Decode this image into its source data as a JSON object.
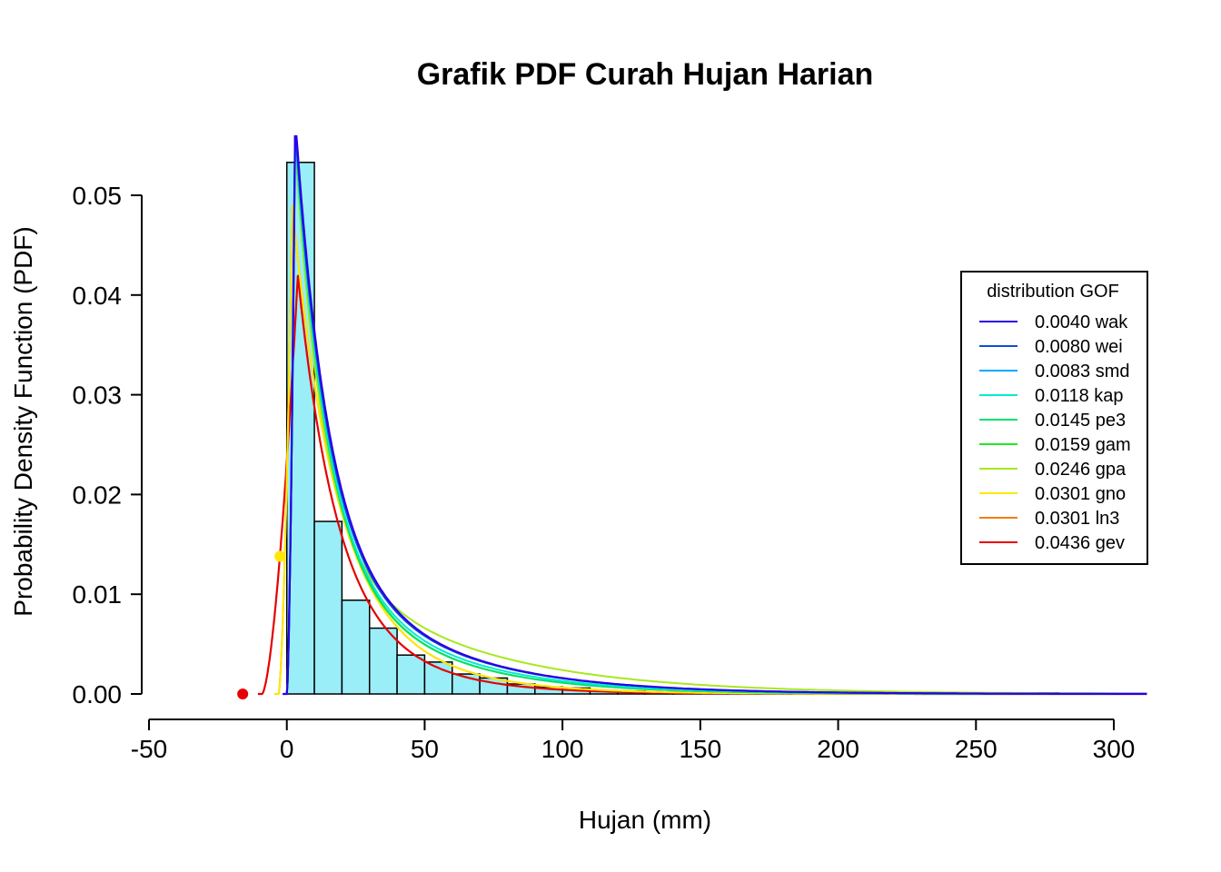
{
  "chart_data": {
    "type": "histogram",
    "title": "Grafik PDF Curah Hujan Harian",
    "xlabel": "Hujan (mm)",
    "ylabel": "Probability Density Function (PDF)",
    "xlim": [
      -50,
      312
    ],
    "ylim": [
      0,
      0.055
    ],
    "x_ticks": [
      -50,
      0,
      50,
      100,
      150,
      200,
      250,
      300
    ],
    "x_tick_labels": [
      "-50",
      "0",
      "50",
      "100",
      "150",
      "200",
      "250",
      "300"
    ],
    "y_ticks": [
      0,
      0.01,
      0.02,
      0.03,
      0.04,
      0.05
    ],
    "y_tick_labels": [
      "0.00",
      "0.01",
      "0.02",
      "0.03",
      "0.04",
      "0.05"
    ],
    "grid": false,
    "histogram": {
      "bin_edges": [
        0,
        10,
        20,
        30,
        40,
        50,
        60,
        70,
        80,
        90,
        100,
        110,
        120,
        130,
        140,
        150,
        160,
        170,
        180,
        190,
        200,
        210,
        220,
        230,
        240,
        250,
        260,
        270,
        280
      ],
      "densities": [
        0.0533,
        0.0173,
        0.0094,
        0.0066,
        0.0039,
        0.0032,
        0.002,
        0.0016,
        0.001,
        0.0007,
        0.0006,
        0.0003,
        0.0003,
        0.0002,
        0.0002,
        0.0001,
        0.0001,
        0.0001,
        0.0001,
        0.0001,
        0.0001,
        0.0001,
        0.0001,
        0.0001,
        0.0001,
        0.0001,
        0.0001,
        0.0001
      ],
      "fill": "#99EEF8",
      "stroke": "#000000"
    },
    "legend": {
      "title": "distribution GOF",
      "position": "right"
    },
    "series": [
      {
        "name": "0.0040 wak",
        "color": "#2A00E6",
        "dist": "wak",
        "peak_x": 3,
        "peak_y": 0.058,
        "decay": 0.087,
        "k": 0.15,
        "start": 0
      },
      {
        "name": "0.0080 wei",
        "color": "#0A4FD6",
        "dist": "wei",
        "peak_x": 3,
        "peak_y": 0.057,
        "decay": 0.088,
        "k": 0.15,
        "start": 0
      },
      {
        "name": "0.0083 smd",
        "color": "#00A8FF",
        "dist": "smd",
        "peak_x": 3,
        "peak_y": 0.057,
        "decay": 0.088,
        "k": 0.15,
        "start": 0
      },
      {
        "name": "0.0118 kap",
        "color": "#00EBD0",
        "dist": "kap",
        "peak_x": 3,
        "peak_y": 0.056,
        "decay": 0.089,
        "k": 0.16,
        "start": 0
      },
      {
        "name": "0.0145 pe3",
        "color": "#00E06A",
        "dist": "pe3",
        "peak_x": 3,
        "peak_y": 0.056,
        "decay": 0.089,
        "k": 0.17,
        "start": 0
      },
      {
        "name": "0.0159 gam",
        "color": "#1EEB1E",
        "dist": "gam",
        "peak_x": 3,
        "peak_y": 0.056,
        "decay": 0.09,
        "k": 0.17,
        "start": 0
      },
      {
        "name": "0.0246 gpa",
        "color": "#A8E81E",
        "dist": "gpa",
        "peak_x": 3,
        "peak_y": 0.055,
        "decay": 0.1,
        "k": 0.12,
        "start": 0
      },
      {
        "name": "0.0301 gno",
        "color": "#FFE800",
        "dist": "gno",
        "peak_x": 2,
        "peak_y": 0.049,
        "decay": 0.068,
        "k": 0.2,
        "start": -3
      },
      {
        "name": "0.0301 ln3",
        "color": "#F08000",
        "dist": "ln3",
        "peak_x": 2,
        "peak_y": 0.049,
        "decay": 0.068,
        "k": 0.2,
        "start": -3
      },
      {
        "name": "0.0436 gev",
        "color": "#E60000",
        "dist": "gev",
        "peak_x": 4,
        "peak_y": 0.042,
        "decay": 0.075,
        "k": 0.22,
        "start": -9
      }
    ],
    "markers": [
      {
        "x": -2.5,
        "y": 0.0138,
        "color": "#FFE800"
      },
      {
        "x": -16,
        "y": 0.0,
        "color": "#E60000"
      }
    ]
  }
}
